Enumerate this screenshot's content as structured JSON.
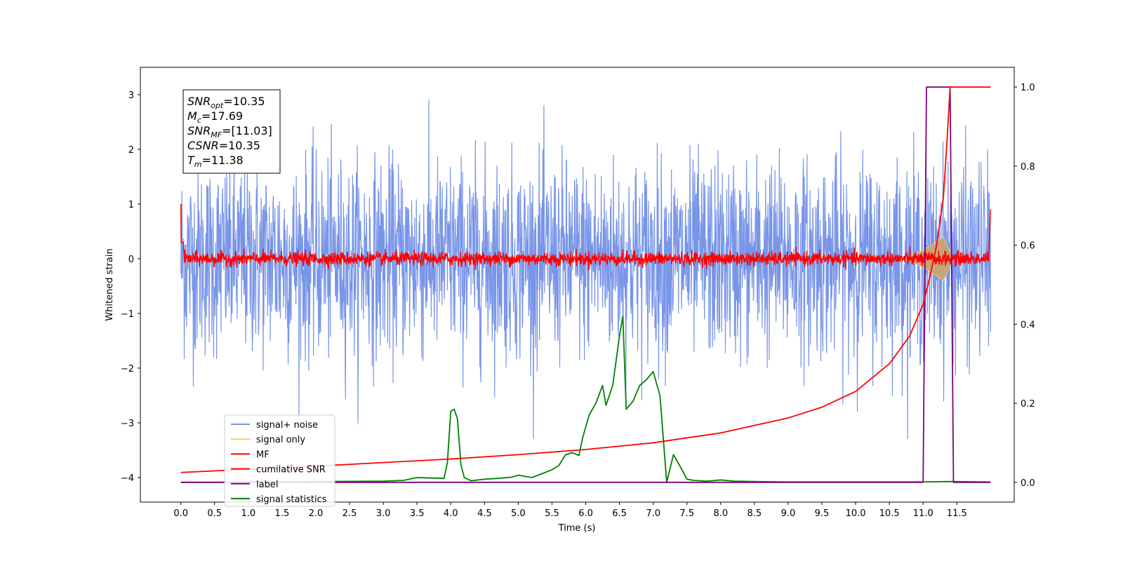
{
  "chart_data": {
    "type": "line",
    "title": "",
    "xlabel": "Time (s)",
    "ylabel": "Whitened strain",
    "xlim": [
      -0.6,
      12.35
    ],
    "ylim": [
      -4.45,
      3.5
    ],
    "y2lim": [
      -0.05,
      1.05
    ],
    "xticks": [
      0.0,
      0.5,
      1.0,
      1.5,
      2.0,
      2.5,
      3.0,
      3.5,
      4.0,
      4.5,
      5.0,
      5.5,
      6.0,
      6.5,
      7.0,
      7.5,
      8.0,
      8.5,
      9.0,
      9.5,
      10.0,
      10.5,
      11.0,
      11.5
    ],
    "xtick_labels": [
      "0.0",
      "0.5",
      "1.0",
      "1.5",
      "2.0",
      "2.5",
      "3.0",
      "3.5",
      "4.0",
      "4.5",
      "5.0",
      "5.5",
      "6.0",
      "6.5",
      "7.0",
      "7.5",
      "8.0",
      "8.5",
      "9.0",
      "9.5",
      "10.0",
      "10.5",
      "11.0",
      "11.5"
    ],
    "yticks": [
      3,
      2,
      1,
      0,
      -1,
      -2,
      -3,
      -4
    ],
    "ytick_labels": [
      "3",
      "2",
      "1",
      "0",
      "−1",
      "−2",
      "−3",
      "−4"
    ],
    "y2ticks": [
      1.0,
      0.8,
      0.6,
      0.4,
      0.2,
      0.0
    ],
    "y2tick_labels": [
      "1.0",
      "0.8",
      "0.6",
      "0.4",
      "0.2",
      "0.0"
    ],
    "grid": false,
    "legend_position": "lower-left",
    "series": [
      {
        "name": "signal+ noise",
        "axis": "left",
        "color": "#7895e8",
        "kind": "noise",
        "x_range": [
          0.0,
          12.0
        ],
        "typical_range": [
          -1.6,
          1.6
        ],
        "extremes": [
          -3.3,
          3.1
        ]
      },
      {
        "name": "signal only",
        "axis": "left",
        "color": "#f5c97a",
        "kind": "chirp",
        "x_range": [
          10.6,
          11.45
        ],
        "peak_amplitude": 0.4,
        "peak_time": 11.3
      },
      {
        "name": "MF",
        "axis": "left",
        "color": "#ff0000",
        "kind": "band",
        "x_range": [
          0.0,
          12.0
        ],
        "typical_range": [
          -0.1,
          0.1
        ],
        "start_value": 1.0,
        "end_value": 0.9
      },
      {
        "name": "cumilative SNR",
        "axis": "right",
        "color": "#ff0000",
        "x": [
          0.0,
          1.0,
          2.0,
          3.0,
          4.0,
          5.0,
          6.0,
          7.0,
          8.0,
          9.0,
          9.5,
          10.0,
          10.5,
          10.8,
          11.0,
          11.1,
          11.2,
          11.3,
          11.35,
          11.4,
          11.45,
          12.0
        ],
        "y": [
          0.025,
          0.033,
          0.041,
          0.05,
          0.059,
          0.07,
          0.083,
          0.1,
          0.125,
          0.163,
          0.19,
          0.23,
          0.3,
          0.37,
          0.45,
          0.52,
          0.6,
          0.72,
          0.85,
          1.0,
          1.0,
          1.0
        ]
      },
      {
        "name": "label",
        "axis": "right",
        "color": "#800080",
        "x": [
          0.0,
          11.0,
          11.05,
          11.4,
          11.45,
          12.0
        ],
        "y": [
          0.0,
          0.0,
          1.0,
          1.0,
          0.0,
          0.0
        ]
      },
      {
        "name": "signal statistics",
        "axis": "right",
        "color": "#008000",
        "x": [
          0.0,
          0.5,
          1.0,
          2.0,
          3.0,
          3.3,
          3.5,
          3.9,
          3.95,
          4.0,
          4.05,
          4.1,
          4.15,
          4.2,
          4.3,
          4.5,
          4.7,
          4.9,
          5.0,
          5.2,
          5.4,
          5.5,
          5.6,
          5.7,
          5.8,
          5.9,
          5.95,
          6.05,
          6.15,
          6.25,
          6.3,
          6.4,
          6.5,
          6.55,
          6.6,
          6.7,
          6.8,
          6.9,
          7.0,
          7.1,
          7.2,
          7.3,
          7.4,
          7.5,
          7.6,
          7.8,
          8.0,
          8.2,
          8.5,
          9.0,
          10.0,
          11.0,
          11.4,
          12.0
        ],
        "y": [
          0.0,
          0.0,
          0.001,
          0.002,
          0.003,
          0.005,
          0.012,
          0.01,
          0.05,
          0.18,
          0.185,
          0.16,
          0.045,
          0.012,
          0.004,
          0.008,
          0.01,
          0.013,
          0.018,
          0.012,
          0.025,
          0.032,
          0.042,
          0.07,
          0.075,
          0.068,
          0.11,
          0.17,
          0.2,
          0.245,
          0.195,
          0.245,
          0.37,
          0.42,
          0.185,
          0.205,
          0.245,
          0.26,
          0.28,
          0.22,
          0.0,
          0.07,
          0.04,
          0.008,
          0.005,
          0.003,
          0.006,
          0.003,
          0.002,
          0.001,
          0.001,
          0.001,
          0.002,
          0.001
        ]
      }
    ],
    "annotations": [
      {
        "base": "SNR",
        "sub": "opt",
        "rest": "=10.35"
      },
      {
        "base": "M",
        "sub": "c",
        "rest": "=17.69"
      },
      {
        "base": "SNR",
        "sub": "MF",
        "rest": "=[11.03]"
      },
      {
        "base": "CSNR",
        "sub": "",
        "rest": "=10.35"
      },
      {
        "base": "T",
        "sub": "m",
        "rest": "=11.38"
      }
    ]
  }
}
